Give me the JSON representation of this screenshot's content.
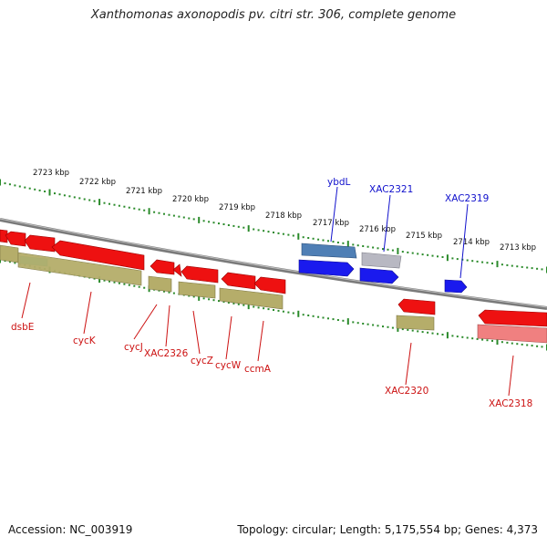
{
  "title": "Xanthomonas axonopodis pv. citri str. 306, complete genome",
  "footer": {
    "accession": "Accession: NC_003919",
    "topology": "Topology: circular; Length: 5,175,554 bp; Genes: 4,373"
  },
  "colors": {
    "forward_gene": "#1a1aee",
    "reverse_gene": "#ee1111",
    "rna_gene": "#b5ad6a",
    "backbone": "#7a7a7a",
    "ruler": "#2a8a2a",
    "label_blue": "#1010cc",
    "label_red": "#cc1111"
  },
  "scale_labels": [
    "2723 kbp",
    "2722 kbp",
    "2721 kbp",
    "2720 kbp",
    "2719 kbp",
    "2718 kbp",
    "2717 kbp",
    "2716 kbp",
    "2715 kbp",
    "2714 kbp",
    "2713 kbp"
  ],
  "outer_genes": [
    "ybdL",
    "XAC2321",
    "XAC2319"
  ],
  "inner_genes": [
    "dsbE",
    "cycK",
    "cycJ",
    "XAC2326",
    "cycZ",
    "cycW",
    "ccmA",
    "XAC2320",
    "XAC2318"
  ]
}
